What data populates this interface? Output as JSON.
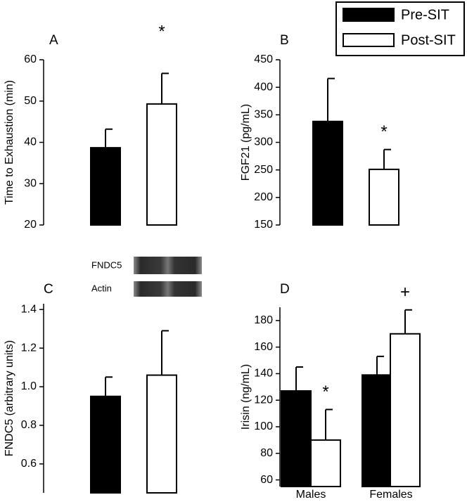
{
  "legend": {
    "entries": [
      {
        "name": "Pre-SIT",
        "color": "#000000"
      },
      {
        "name": "Post-SIT",
        "color": "#ffffff"
      }
    ]
  },
  "chart_data": [
    {
      "type": "bar",
      "label": "A",
      "y_label": "Time to Exhaustion (min)",
      "categories": [
        null
      ],
      "ylim": [
        20,
        60
      ],
      "yticks": [
        20,
        30,
        40,
        50,
        60
      ],
      "series": [
        {
          "color": "#000000",
          "values": [
            38.7
          ],
          "errors": [
            4.5
          ]
        },
        {
          "color": "#ffffff",
          "values": [
            49.3
          ],
          "errors": [
            7.4
          ]
        }
      ],
      "annotations": [
        {
          "text": "*",
          "series": 1,
          "index": 0
        }
      ]
    },
    {
      "type": "bar",
      "label": "B",
      "y_label": "FGF21 (pg/mL)",
      "categories": [
        null
      ],
      "ylim": [
        150,
        450
      ],
      "yticks": [
        150,
        200,
        250,
        300,
        350,
        400,
        450
      ],
      "series": [
        {
          "color": "#000000",
          "values": [
            338
          ],
          "errors": [
            78
          ]
        },
        {
          "color": "#ffffff",
          "values": [
            251
          ],
          "errors": [
            36
          ]
        }
      ],
      "annotations": [
        {
          "text": "*",
          "series": 1,
          "index": 0
        }
      ]
    },
    {
      "type": "bar",
      "label": "C",
      "y_label": "FNDC5 (arbitrary units)",
      "categories": [
        null
      ],
      "ylim": [
        0.45,
        1.43
      ],
      "yticks": [
        0.6,
        0.8,
        {
          "value": 1,
          "label": "1.0"
        },
        1.2,
        1.4
      ],
      "series": [
        {
          "color": "#000000",
          "values": [
            0.95
          ],
          "errors": [
            0.1
          ]
        },
        {
          "color": "#ffffff",
          "values": [
            1.06
          ],
          "errors": [
            0.23
          ]
        }
      ],
      "inset": {
        "labels": [
          "FNDC5",
          "Actin"
        ]
      }
    },
    {
      "type": "bar",
      "label": "D",
      "y_label": "Irisin (ng/mL)",
      "categories": [
        "Males",
        "Females"
      ],
      "ylim": [
        55,
        190
      ],
      "yticks": [
        60,
        80,
        100,
        120,
        140,
        160,
        180
      ],
      "series": [
        {
          "color": "#000000",
          "values": [
            127,
            139
          ],
          "errors": [
            18,
            14
          ]
        },
        {
          "color": "#ffffff",
          "values": [
            90,
            170
          ],
          "errors": [
            23,
            18
          ]
        }
      ],
      "annotations": [
        {
          "text": "*",
          "series": 1,
          "index": 0
        },
        {
          "text": "+",
          "series": 1,
          "index": 1
        }
      ]
    }
  ]
}
